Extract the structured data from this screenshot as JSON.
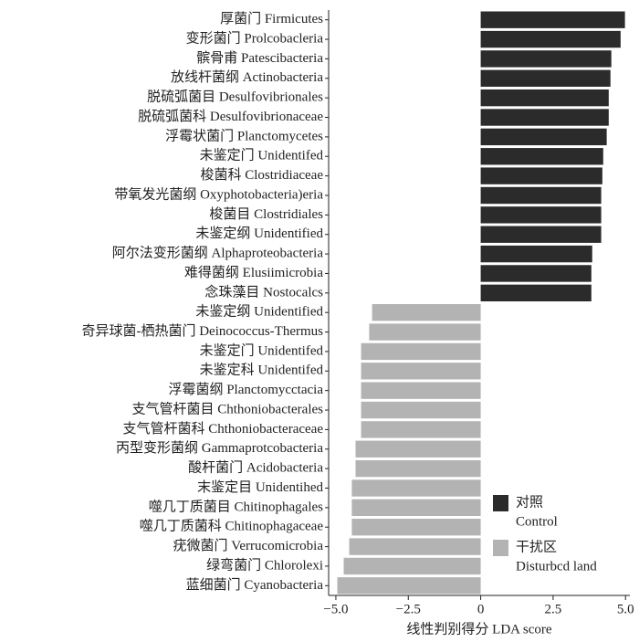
{
  "chart_data": {
    "type": "barh",
    "xlabel": "线性判别得分 LDA score",
    "categories": [
      "厚菌门 Firmicutes",
      "变形菌门 Prolcobacleria",
      "髌骨甫 Patescibacteria",
      "放线杆菌纲 Actinobacteria",
      "脱硫弧菌目 Desulfovibrionales",
      "脱硫弧菌科 Desulfovibrionaceae",
      "浮霉状菌门 Planctomycetes",
      "未鉴定门 Unidentifed",
      "梭菌科 Clostridiaceae",
      "带氧发光菌纲 Oxyphotobacteria)eria",
      "梭菌目 Clostridiales",
      "未鉴定纲 Unidentified",
      "阿尔法变形菌纲 Alphaproteobacteria",
      "难得菌纲 Elusiimicrobia",
      "念珠藻目 Nostocalcs",
      "未鉴定纲 Unidentified",
      "奇异球菌-栖热菌门 Deinococcus-Thermus",
      "未鉴定门 Unidentifed",
      "未鉴定科 Unidentifed",
      "浮霉菌纲 Planctomycctacia",
      "支气管杆菌目 Chthoniobacterales",
      "支气管杆菌科 Chthoniobacteraceae",
      "丙型变形菌纲 Gammaprotcobacteria",
      "酸杆菌门 Acidobacteria",
      "末鉴定目 Unidentihed",
      "噬几丁质菌目 Chitinophagales",
      "噬几丁质菌科 Chitinophagaceae",
      "疣微菌门 Verrucomicrobia",
      "绿弯菌门 Chlorolexi",
      "蓝细菌门 Cyanobacteria"
    ],
    "series": [
      {
        "name": "对照",
        "name_en": "Control",
        "color": "#2b2b2b",
        "values": [
          4.98,
          4.83,
          4.51,
          4.48,
          4.42,
          4.42,
          4.35,
          4.23,
          4.2,
          4.16,
          4.16,
          4.16,
          3.85,
          3.82,
          3.82,
          null,
          null,
          null,
          null,
          null,
          null,
          null,
          null,
          null,
          null,
          null,
          null,
          null,
          null,
          null
        ]
      },
      {
        "name": "干扰区",
        "name_en": "Disturbcd land",
        "color": "#b3b3b3",
        "values": [
          null,
          null,
          null,
          null,
          null,
          null,
          null,
          null,
          null,
          null,
          null,
          null,
          null,
          null,
          null,
          -3.75,
          -3.85,
          -4.13,
          -4.13,
          -4.13,
          -4.13,
          -4.13,
          -4.32,
          -4.32,
          -4.45,
          -4.45,
          -4.45,
          -4.54,
          -4.73,
          -4.95
        ]
      }
    ],
    "xlim": [
      -5.25,
      5.15
    ],
    "xticks": [
      {
        "value": -5,
        "label": "−5.0"
      },
      {
        "value": -2.5,
        "label": "−2.5"
      },
      0,
      2.5,
      {
        "value": 5,
        "label": "5.0"
      }
    ]
  }
}
